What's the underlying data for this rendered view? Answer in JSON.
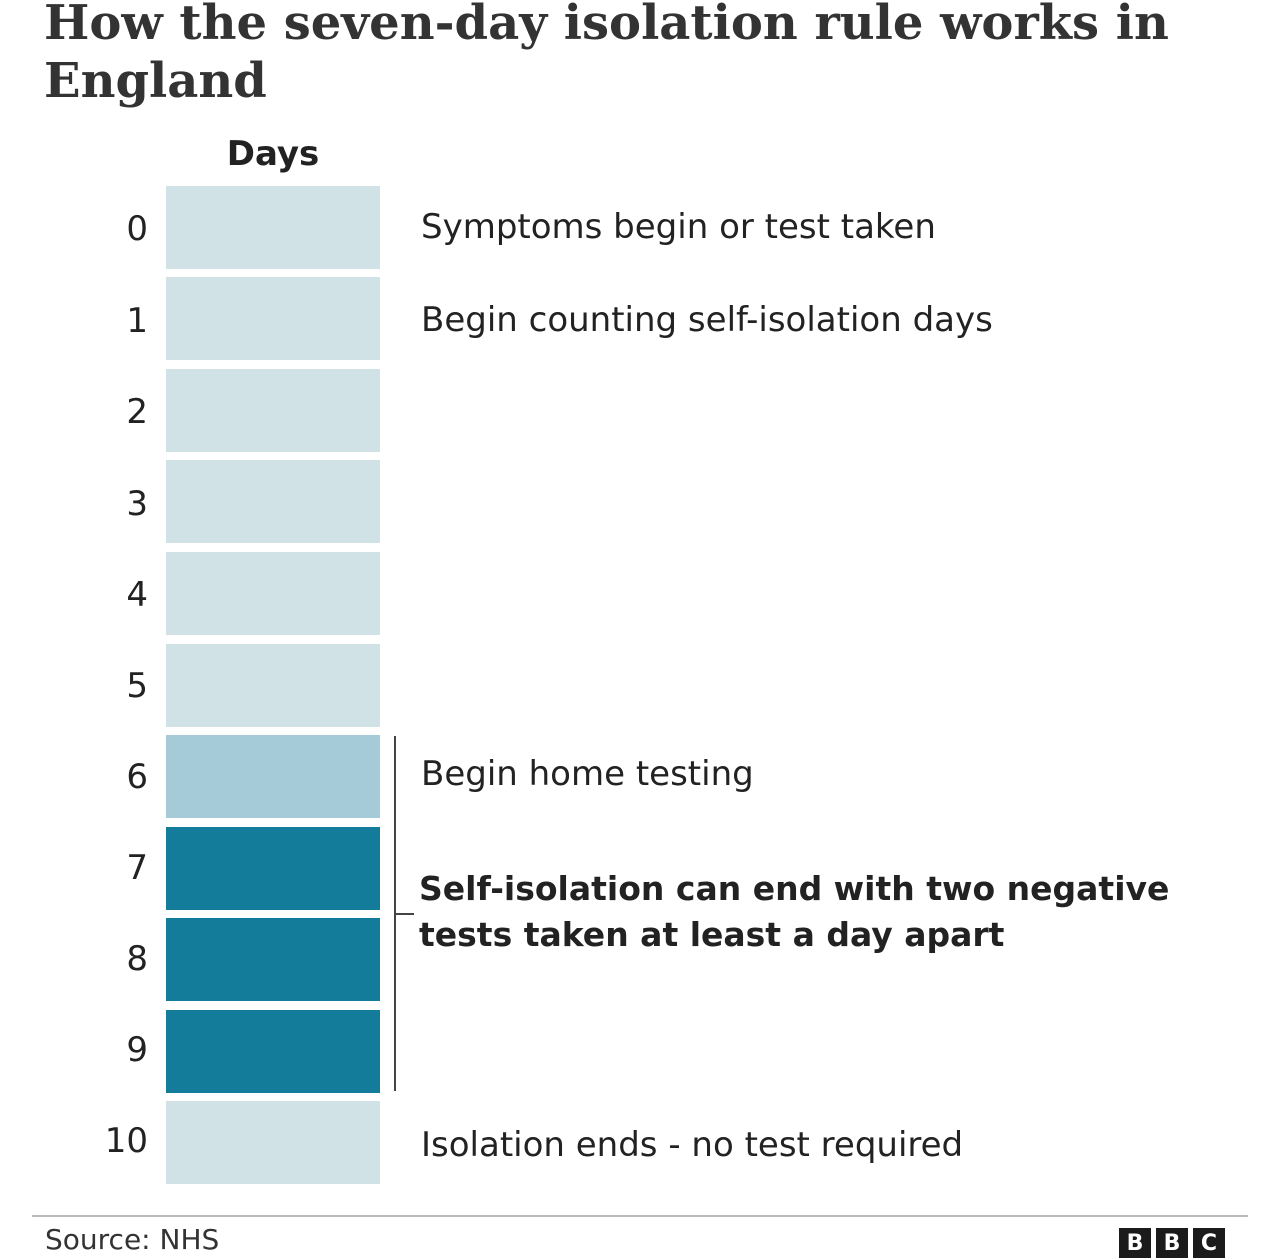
{
  "title": "How the seven-day isolation rule works in England",
  "column_header": "Days",
  "days": [
    {
      "day": "0",
      "phase": "pre"
    },
    {
      "day": "1",
      "phase": "pre"
    },
    {
      "day": "2",
      "phase": "pre"
    },
    {
      "day": "3",
      "phase": "pre"
    },
    {
      "day": "4",
      "phase": "pre"
    },
    {
      "day": "5",
      "phase": "pre"
    },
    {
      "day": "6",
      "phase": "testing"
    },
    {
      "day": "7",
      "phase": "can-end"
    },
    {
      "day": "8",
      "phase": "can-end"
    },
    {
      "day": "9",
      "phase": "can-end"
    },
    {
      "day": "10",
      "phase": "post"
    }
  ],
  "annotations": {
    "day0": "Symptoms begin or test taken",
    "day1": "Begin counting self-isolation days",
    "day6": "Begin home testing",
    "days7to9": "Self-isolation can end with two negative tests taken at least a day apart",
    "day10": "Isolation ends - no test required"
  },
  "colors": {
    "pre_and_post": "#d0e2e6",
    "testing": "#a5cbd8",
    "can_end": "#127c9a"
  },
  "source": "Source: NHS",
  "logo": [
    "B",
    "B",
    "C"
  ]
}
